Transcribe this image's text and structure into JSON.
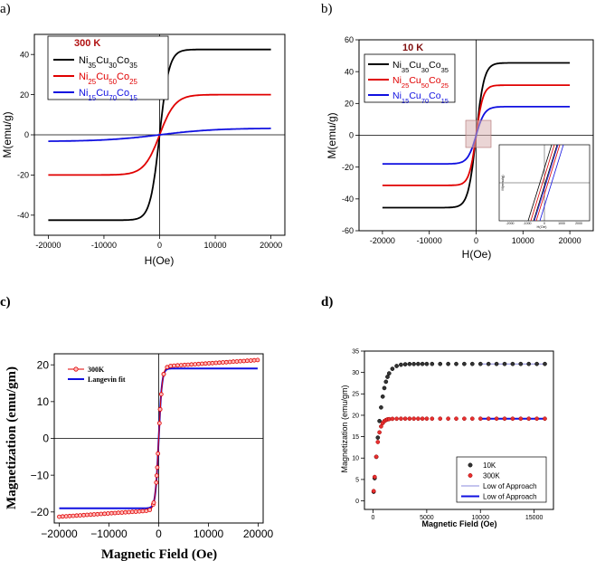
{
  "chart_data": [
    {
      "panel": "a)",
      "type": "line",
      "annotation": "300 K",
      "xlabel": "H(Oe)",
      "ylabel": "M(emu/g)",
      "xlim": [
        -22500,
        22500
      ],
      "ylim": [
        -50,
        50
      ],
      "xticks": [
        -20000,
        -10000,
        0,
        10000,
        20000
      ],
      "yticks": [
        -40,
        -20,
        0,
        20,
        40
      ],
      "series": [
        {
          "name": "Ni35Cu30Co35",
          "legend": [
            [
              "Ni",
              "35"
            ],
            [
              "Cu",
              "30"
            ],
            [
              "Co",
              "35"
            ]
          ],
          "color": "#000000",
          "ms": 42.5,
          "h0": 1700,
          "mr": 0
        },
        {
          "name": "Ni25Cu50Co25",
          "legend": [
            [
              "Ni",
              "25"
            ],
            [
              "Cu",
              "50"
            ],
            [
              "Co",
              "25"
            ]
          ],
          "color": "#e00000",
          "ms": 20,
          "h0": 2800,
          "mr": 0
        },
        {
          "name": "Ni15Cu70Co15",
          "legend": [
            [
              "Ni",
              "15"
            ],
            [
              "Cu",
              "70"
            ],
            [
              "Co",
              "15"
            ]
          ],
          "color": "#1010e0",
          "ms": 3.3,
          "h0": 10000,
          "mr": 0
        }
      ]
    },
    {
      "panel": "b)",
      "type": "line",
      "annotation": "10 K",
      "xlabel": "H(Oe)",
      "ylabel": "M(emu/g)",
      "xlim": [
        -25000,
        25000
      ],
      "ylim": [
        -60,
        60
      ],
      "xticks": [
        -20000,
        -10000,
        0,
        10000,
        20000
      ],
      "yticks": [
        -60,
        -40,
        -20,
        0,
        20,
        40,
        60
      ],
      "inset": {
        "xlabel": "H(Oe)",
        "ylabel": "M(emu/g)",
        "ticks": [
          "-2000",
          "-1000",
          "0",
          "1000",
          "2000"
        ]
      },
      "series": [
        {
          "name": "Ni35Cu30Co35",
          "legend": [
            [
              "Ni",
              "35"
            ],
            [
              "Cu",
              "30"
            ],
            [
              "Co",
              "35"
            ]
          ],
          "color": "#000000",
          "ms": 45.5,
          "h0": 1700,
          "mr": 0
        },
        {
          "name": "Ni25Cu50Co25",
          "legend": [
            [
              "Ni",
              "25"
            ],
            [
              "Cu",
              "50"
            ],
            [
              "Co",
              "25"
            ]
          ],
          "color": "#e00000",
          "ms": 31.5,
          "h0": 1500,
          "mr": 0
        },
        {
          "name": "Ni15Cu70Co15",
          "legend": [
            [
              "Ni",
              "15"
            ],
            [
              "Cu",
              "70"
            ],
            [
              "Co",
              "15"
            ]
          ],
          "color": "#1010e0",
          "ms": 18,
          "h0": 1800,
          "mr": 0
        }
      ]
    },
    {
      "panel": "c)",
      "type": "scatter",
      "xlabel": "Magnetic Field (Oe)",
      "ylabel": "Magnetization (emu/gm)",
      "xlim": [
        -21000,
        21000
      ],
      "ylim": [
        -23,
        23
      ],
      "xticks": [
        -20000,
        -10000,
        0,
        10000,
        20000
      ],
      "yticks": [
        -20,
        -10,
        0,
        10,
        20
      ],
      "series": [
        {
          "name": "300K",
          "kind": "marker-line",
          "color": "#e00000",
          "ms": 19.5,
          "h0": 700,
          "slope": 9e-05
        },
        {
          "name": "Langevin fit",
          "kind": "line",
          "color": "#1010e0",
          "ms": 19.0,
          "h0": 650,
          "slope": 0
        }
      ]
    },
    {
      "panel": "d)",
      "type": "scatter",
      "xlabel": "Magnetic Field (Oe)",
      "ylabel": "Magnetization (emu/gm)",
      "xlim": [
        -800,
        16800
      ],
      "ylim": [
        -2,
        35
      ],
      "xticks": [
        0,
        5000,
        10000,
        15000
      ],
      "yticks": [
        0,
        5,
        10,
        15,
        20,
        25,
        30,
        35
      ],
      "series": [
        {
          "name": "10K",
          "kind": "dots",
          "color": "#000000",
          "ms": 32.0,
          "h0": 900,
          "xstart": 0,
          "xend": 16000
        },
        {
          "name": "300K",
          "kind": "dots",
          "color": "#e00000",
          "ms": 19.2,
          "h0": 500,
          "xstart": 0,
          "xend": 16000
        },
        {
          "name": "Low of Approach",
          "kind": "thin-line",
          "color": "#8888dd",
          "ms": 32.0,
          "h0": 900,
          "xstart": 10000,
          "xend": 16000
        },
        {
          "name": "Low of Approach",
          "kind": "thick-line",
          "color": "#1010e0",
          "ms": 19.2,
          "h0": 500,
          "xstart": 10000,
          "xend": 16000
        }
      ]
    }
  ]
}
